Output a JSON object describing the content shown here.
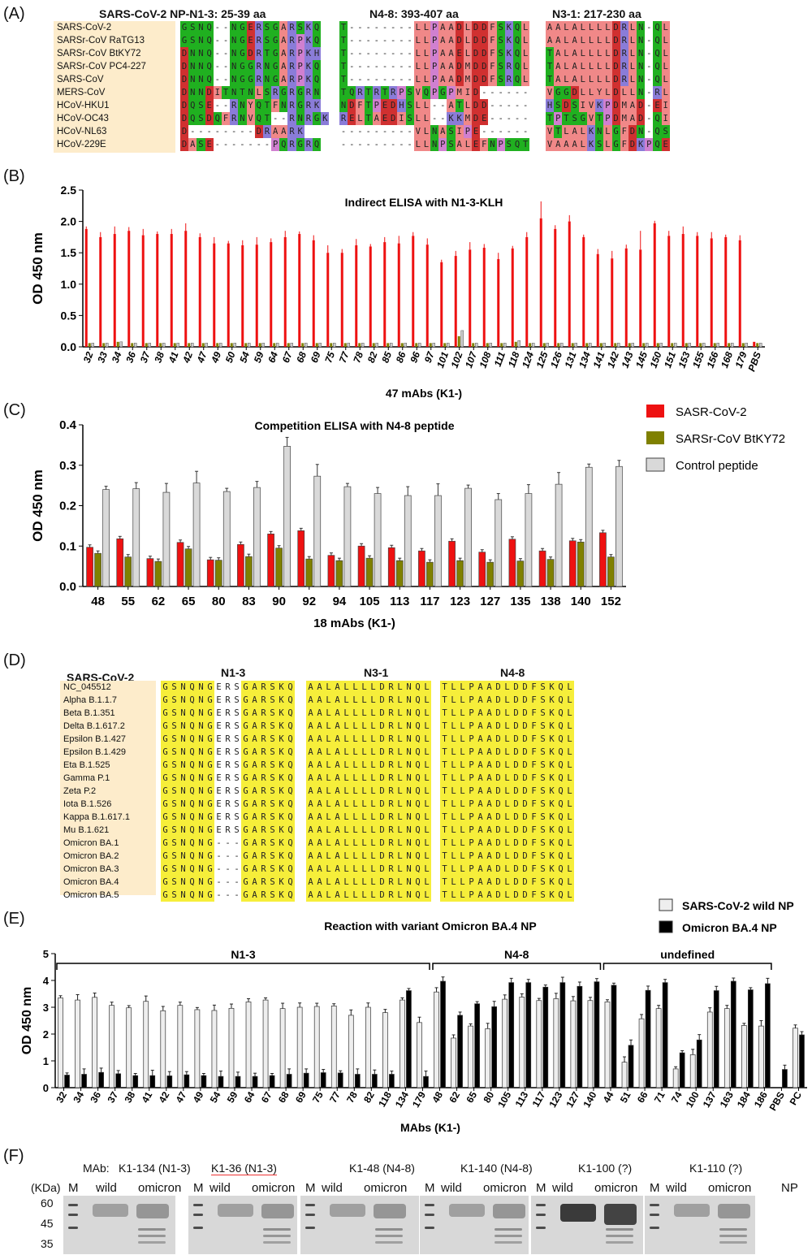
{
  "panelA": {
    "label": "(A)",
    "titles": [
      "SARS-CoV-2 NP-N1-3: 25-39 aa",
      "N4-8: 393-407 aa",
      "N3-1: 217-230 aa"
    ],
    "names": [
      "SARS-CoV-2",
      "SARSr-CoV RaTG13",
      "SARSr-CoV BtKY72",
      "SARSr-CoV PC4-227",
      "SARS-CoV",
      "MERS-CoV",
      "HCoV-HKU1",
      "HCoV-OC43",
      "HCoV-NL63",
      "HCoV-229E"
    ],
    "n13": [
      "GSNQ--NGERSGARSKQ",
      "GSNQ--NGERSGARPKQ",
      "DNNQ--NGDRTGARPKH",
      "DNNQ--NGGRNGARPKQ",
      "DNNQ--NGGRNGARPKQ",
      "DNNDITNTNLSRGRGRN",
      "DQSE--RNYQTFNRGRK",
      "DQSDQFRNVQT--RNRGK",
      "D--------DRAARK",
      "DASE-------PQRGRQ"
    ],
    "n48": [
      "T--------LLPAADLDDFSKQL",
      "T--------LLPAADLDDFSKQL",
      "T--------LLPAAELDDFSKQL",
      "T--------LLPAADMDDFSRQL",
      "T--------LLPAADMDDFSRQL",
      "TQRTRTRPSVQPGPMID------",
      "NDFTPEDHSLL--ATLDD-----",
      "RELTAEDISLL--KKMDE-----",
      "---------VLNASIPE------",
      "---------LLNPSALEFNPSQT"
    ],
    "n31": [
      "AALALLLLDRLN-QL",
      "AALALLLLDRLN-QL",
      "TALALLLLDRLN-QL",
      "TALALLLLDRLN-QL",
      "TALALLLLDRLN-QL",
      "VGGDLLYLDLLN-RL",
      "HSDSIVKPDMAD-EI",
      "TPTSGVTPDMAD-QI",
      "VTLALKNLGFDN-QS",
      "VAAALKSLGFDKPQE"
    ]
  },
  "panelB": {
    "label": "(B)",
    "chart_data": {
      "type": "bar",
      "title": "Indirect ELISA with N1-3-KLH",
      "xlabel": "47 mAbs (K1-)",
      "ylabel": "OD 450 nm",
      "ylim": [
        0,
        2.5
      ],
      "yticks": [
        "0.0",
        "0.5",
        "1.0",
        "1.5",
        "2.0",
        "2.5"
      ],
      "categories": [
        "32",
        "33",
        "34",
        "36",
        "37",
        "38",
        "41",
        "42",
        "47",
        "49",
        "50",
        "54",
        "59",
        "64",
        "67",
        "68",
        "69",
        "75",
        "77",
        "78",
        "82",
        "85",
        "86",
        "96",
        "97",
        "101",
        "102",
        "107",
        "108",
        "111",
        "118",
        "124",
        "125",
        "126",
        "131",
        "134",
        "141",
        "142",
        "143",
        "145",
        "150",
        "151",
        "153",
        "155",
        "156",
        "168",
        "179",
        "PBS"
      ],
      "series": [
        {
          "color": "#ee1111",
          "values": [
            1.88,
            1.75,
            1.8,
            1.85,
            1.78,
            1.8,
            1.8,
            1.85,
            1.75,
            1.65,
            1.65,
            1.62,
            1.63,
            1.67,
            1.75,
            1.8,
            1.7,
            1.5,
            1.5,
            1.62,
            1.6,
            1.67,
            1.65,
            1.77,
            1.63,
            1.35,
            1.45,
            1.55,
            1.58,
            1.4,
            1.57,
            1.75,
            2.05,
            1.88,
            2.0,
            1.75,
            1.48,
            1.41,
            1.57,
            1.55,
            1.97,
            1.77,
            1.8,
            1.77,
            1.73,
            1.75,
            1.7,
            0.08
          ]
        },
        {
          "color": "#7f8000",
          "values": [
            0.06,
            0.06,
            0.08,
            0.06,
            0.06,
            0.06,
            0.06,
            0.06,
            0.06,
            0.06,
            0.06,
            0.06,
            0.06,
            0.06,
            0.06,
            0.06,
            0.06,
            0.06,
            0.06,
            0.06,
            0.06,
            0.06,
            0.06,
            0.06,
            0.06,
            0.06,
            0.17,
            0.06,
            0.06,
            0.06,
            0.08,
            0.06,
            0.06,
            0.06,
            0.06,
            0.06,
            0.06,
            0.06,
            0.06,
            0.06,
            0.06,
            0.06,
            0.06,
            0.06,
            0.06,
            0.06,
            0.06,
            0.06
          ]
        },
        {
          "color": "#cccccc",
          "values": [
            0.06,
            0.06,
            0.08,
            0.06,
            0.06,
            0.06,
            0.06,
            0.06,
            0.06,
            0.06,
            0.06,
            0.06,
            0.06,
            0.06,
            0.06,
            0.06,
            0.06,
            0.06,
            0.06,
            0.06,
            0.06,
            0.06,
            0.06,
            0.06,
            0.06,
            0.06,
            0.26,
            0.06,
            0.06,
            0.06,
            0.1,
            0.06,
            0.06,
            0.06,
            0.06,
            0.06,
            0.06,
            0.06,
            0.06,
            0.06,
            0.06,
            0.06,
            0.06,
            0.06,
            0.06,
            0.06,
            0.06,
            0.06
          ]
        }
      ]
    }
  },
  "panelC": {
    "label": "(C)",
    "chart_data": {
      "type": "bar",
      "title": "Competition ELISA with N4-8 peptide",
      "xlabel": "18 mAbs (K1-)",
      "ylabel": "OD 450 nm",
      "ylim": [
        0,
        0.4
      ],
      "yticks": [
        "0.0",
        "0.1",
        "0.2",
        "0.3",
        "0.4"
      ],
      "categories": [
        "48",
        "55",
        "62",
        "65",
        "80",
        "83",
        "90",
        "92",
        "94",
        "105",
        "113",
        "117",
        "123",
        "127",
        "135",
        "138",
        "140",
        "152"
      ],
      "series": [
        {
          "name": "SASR-CoV-2",
          "color": "#ee1111",
          "values": [
            0.097,
            0.118,
            0.069,
            0.109,
            0.066,
            0.104,
            0.13,
            0.138,
            0.077,
            0.1,
            0.096,
            0.088,
            0.112,
            0.085,
            0.117,
            0.088,
            0.113,
            0.133
          ]
        },
        {
          "name": "SARSr-CoV BtKY72",
          "color": "#7f8000",
          "values": [
            0.082,
            0.073,
            0.062,
            0.093,
            0.065,
            0.074,
            0.095,
            0.068,
            0.064,
            0.07,
            0.064,
            0.06,
            0.064,
            0.06,
            0.063,
            0.067,
            0.11,
            0.073
          ]
        },
        {
          "name": "Control peptide",
          "color": "#d9d9d9",
          "values": [
            0.24,
            0.242,
            0.233,
            0.256,
            0.235,
            0.245,
            0.347,
            0.273,
            0.247,
            0.23,
            0.225,
            0.225,
            0.243,
            0.215,
            0.23,
            0.253,
            0.295,
            0.297
          ]
        }
      ]
    }
  },
  "panelD": {
    "label": "(D)",
    "header": "SARS-CoV-2",
    "cols": [
      "N1-3",
      "N3-1",
      "N4-8"
    ],
    "names": [
      "NC_045512",
      "Alpha B.1.1.7",
      "Beta B.1.351",
      "Delta B.1.617.2",
      "Epsilon B.1.427",
      "Epsilon B.1.429",
      "Eta B.1.525",
      "Gamma P.1",
      "Zeta P.2",
      "Iota B.1.526",
      "Kappa B.1.617.1",
      "Mu B.1.621",
      "Omicron BA.1",
      "Omicron BA.2",
      "Omicron BA.3",
      "Omicron BA.4",
      "Omicron BA.5"
    ],
    "n13_full": "GSNQNGERSGARSKQ",
    "n13_del": "GSNQNG---GARSKQ",
    "n31": "AALALLLLDRLNQL",
    "n48": "TLLPAADLDDFSKQL"
  },
  "panelE": {
    "label": "(E)",
    "chart_data": {
      "type": "bar",
      "title": "Reaction with variant Omicron BA.4 NP",
      "xlabel": "MAbs (K1-)",
      "ylabel": "OD 450 nm",
      "ylim": [
        0,
        5
      ],
      "yticks": [
        "0",
        "1",
        "2",
        "3",
        "4",
        "5"
      ],
      "groups": [
        "N1-3",
        "N4-8",
        "undefined"
      ],
      "categories": [
        "32",
        "34",
        "36",
        "37",
        "38",
        "41",
        "42",
        "47",
        "49",
        "54",
        "59",
        "64",
        "67",
        "68",
        "69",
        "75",
        "77",
        "78",
        "82",
        "118",
        "134",
        "179",
        "48",
        "62",
        "65",
        "80",
        "105",
        "113",
        "117",
        "123",
        "127",
        "140",
        "44",
        "51",
        "66",
        "71",
        "74",
        "100",
        "137",
        "163",
        "184",
        "186",
        "PBS",
        "PC"
      ],
      "series": [
        {
          "name": "SARS-CoV-2 wild NP",
          "color": "#eeeeee",
          "values": [
            3.35,
            3.27,
            3.37,
            3.07,
            2.98,
            3.22,
            2.87,
            3.07,
            2.91,
            2.88,
            2.96,
            3.2,
            3.27,
            2.95,
            3.0,
            3.03,
            3.05,
            2.7,
            3.0,
            2.8,
            3.27,
            2.43,
            3.57,
            1.85,
            2.3,
            2.2,
            3.3,
            3.38,
            3.25,
            3.32,
            3.24,
            3.25,
            3.2,
            0.95,
            2.57,
            2.95,
            0.7,
            1.23,
            2.82,
            2.95,
            2.32,
            2.3,
            0.0,
            2.22
          ]
        },
        {
          "name": "Omicron BA.4 NP",
          "color": "#000000",
          "values": [
            0.47,
            0.5,
            0.57,
            0.52,
            0.45,
            0.45,
            0.44,
            0.48,
            0.45,
            0.42,
            0.42,
            0.42,
            0.45,
            0.5,
            0.54,
            0.56,
            0.55,
            0.5,
            0.5,
            0.5,
            3.62,
            0.42,
            3.97,
            2.7,
            3.13,
            3.02,
            3.92,
            3.92,
            3.75,
            3.92,
            3.78,
            3.95,
            3.82,
            1.58,
            3.63,
            3.92,
            1.3,
            1.78,
            3.62,
            3.97,
            3.65,
            3.88,
            0.68,
            1.97
          ]
        }
      ]
    }
  },
  "panelF": {
    "label": "(F)",
    "kda": "(KDa)",
    "markers": [
      "60",
      "45",
      "35"
    ],
    "mab_prefix": "MAb:",
    "blots": [
      {
        "title": "K1-134 (N1-3)",
        "m": "M",
        "a": "wild",
        "b": "omicron"
      },
      {
        "title": "K1-36 (N1-3)",
        "m": "M",
        "a": "wild",
        "b": "omicron"
      },
      {
        "title": "K1-48 (N4-8)",
        "m": "M",
        "a": "wild",
        "b": "omicron"
      },
      {
        "title": "K1-140 (N4-8)",
        "m": "M",
        "a": "wild",
        "b": "omicron"
      },
      {
        "title": "K1-100 (?)",
        "m": "M",
        "a": "wild",
        "b": "omicron"
      },
      {
        "title": "K1-110 (?)",
        "m": "M",
        "a": "wild",
        "b": "omicron"
      }
    ],
    "np": "NP"
  }
}
